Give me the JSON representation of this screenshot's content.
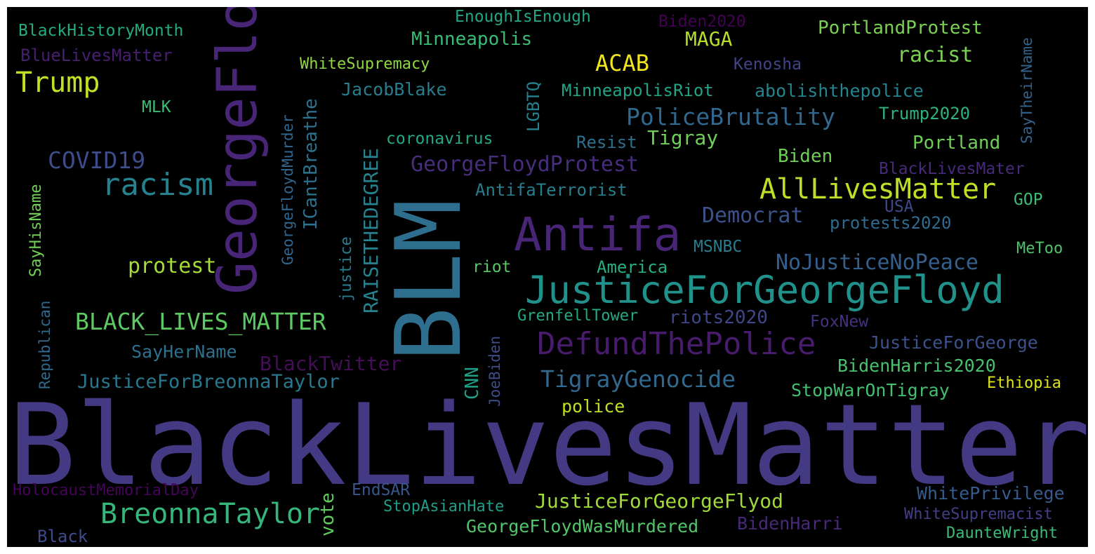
{
  "words": [
    {
      "text": "BlackLivesMatter",
      "color": "#443a83"
    },
    {
      "text": "BLM",
      "color": "#2e6e8e"
    },
    {
      "text": "GeorgeFloyd",
      "color": "#482576"
    },
    {
      "text": "Antifa",
      "color": "#482576"
    },
    {
      "text": "JusticeForGeorgeFloyd",
      "color": "#21918c"
    },
    {
      "text": "DefundThePolice",
      "color": "#481b6d"
    },
    {
      "text": "racism",
      "color": "#26828e"
    },
    {
      "text": "AllLivesMatter",
      "color": "#bddf26"
    },
    {
      "text": "BreonnaTaylor",
      "color": "#35b779"
    },
    {
      "text": "Trump",
      "color": "#c0df25"
    },
    {
      "text": "BLACK_LIVES_MATTER",
      "color": "#5ec962"
    },
    {
      "text": "PoliceBrutality",
      "color": "#31688e"
    },
    {
      "text": "TigrayGenocide",
      "color": "#31688e"
    },
    {
      "text": "GeorgeFloydProtest",
      "color": "#472d7b"
    },
    {
      "text": "NoJusticeNoPeace",
      "color": "#355f8d"
    },
    {
      "text": "COVID19",
      "color": "#3e4c8a"
    },
    {
      "text": "ACAB",
      "color": "#f1e51d"
    },
    {
      "text": "racist",
      "color": "#7ad151"
    },
    {
      "text": "protest",
      "color": "#a5db36"
    },
    {
      "text": "JusticeForBreonnaTaylor",
      "color": "#2a788e"
    },
    {
      "text": "JusticeForGeorgeFlyod",
      "color": "#a0da39"
    },
    {
      "text": "BlackTwitter",
      "color": "#440f57"
    },
    {
      "text": "Democrat",
      "color": "#3b528b"
    },
    {
      "text": "RAISETHEDEGREE",
      "color": "#26828e"
    },
    {
      "text": "PortlandProtest",
      "color": "#7ad151"
    },
    {
      "text": "Minneapolis",
      "color": "#3bbb75"
    },
    {
      "text": "MAGA",
      "color": "#b5de2b"
    },
    {
      "text": "riots2020",
      "color": "#3f4788"
    },
    {
      "text": "JusticeForGeorge",
      "color": "#3b528b"
    },
    {
      "text": "BidenHarris2020",
      "color": "#4ac16d"
    },
    {
      "text": "Tigray",
      "color": "#6ece58"
    },
    {
      "text": "Portland",
      "color": "#6ece58"
    },
    {
      "text": "ICantBreathe",
      "color": "#2c718e"
    },
    {
      "text": "WhitePrivilege",
      "color": "#365c8d"
    },
    {
      "text": "GeorgeFloydWasMurdered",
      "color": "#52c569"
    },
    {
      "text": "BidenHarri",
      "color": "#482878"
    },
    {
      "text": "JacobBlake",
      "color": "#287d8e"
    },
    {
      "text": "MinneapolisRiot",
      "color": "#20a486"
    },
    {
      "text": "abolishthepolice",
      "color": "#25848e"
    },
    {
      "text": "SayHerName",
      "color": "#2c718e"
    },
    {
      "text": "StopWarOnTigray",
      "color": "#44bf70"
    },
    {
      "text": "police",
      "color": "#c2df23"
    },
    {
      "text": "BlackHistoryMonth",
      "color": "#25ab82"
    },
    {
      "text": "BlueLivesMatter",
      "color": "#481f70"
    },
    {
      "text": "Biden",
      "color": "#6ece58"
    },
    {
      "text": "AntifaTerrorist",
      "color": "#277f8e"
    },
    {
      "text": "America",
      "color": "#29af7f"
    },
    {
      "text": "MSNBC",
      "color": "#287c8e"
    },
    {
      "text": "protests2020",
      "color": "#2f6b8e"
    },
    {
      "text": "Trump2020",
      "color": "#2db27d"
    },
    {
      "text": "BlackLivesMater",
      "color": "#472a7a"
    },
    {
      "text": "Resist",
      "color": "#2c728e"
    },
    {
      "text": "coronavirus",
      "color": "#22a884"
    },
    {
      "text": "GrenfellTower",
      "color": "#23a983"
    },
    {
      "text": "EnoughIsEnough",
      "color": "#21a685"
    },
    {
      "text": "WhiteSupremacy",
      "color": "#90d743"
    },
    {
      "text": "Biden2020",
      "color": "#440154"
    },
    {
      "text": "Kenosha",
      "color": "#414487"
    },
    {
      "text": "SayTheirName",
      "color": "#33638d"
    },
    {
      "text": "USA",
      "color": "#3e4989"
    },
    {
      "text": "GOP",
      "color": "#3dbc74"
    },
    {
      "text": "MeToo",
      "color": "#4ec36b"
    },
    {
      "text": "MLK",
      "color": "#3dbc74"
    },
    {
      "text": "riot",
      "color": "#58c765"
    },
    {
      "text": "FoxNew",
      "color": "#46327e"
    },
    {
      "text": "Ethiopia",
      "color": "#dde318"
    },
    {
      "text": "WhiteSupremacist",
      "color": "#433e85"
    },
    {
      "text": "DaunteWright",
      "color": "#3bbb75"
    },
    {
      "text": "HolocaustMemorialDay",
      "color": "#450559"
    },
    {
      "text": "EndSAR",
      "color": "#39568c"
    },
    {
      "text": "StopAsianHate",
      "color": "#1f9e89"
    },
    {
      "text": "Black",
      "color": "#3e4a89"
    },
    {
      "text": "vote",
      "color": "#62cb5f"
    },
    {
      "text": "CNN",
      "color": "#1fa088"
    },
    {
      "text": "JoeBiden",
      "color": "#3d4e8a"
    },
    {
      "text": "justice",
      "color": "#287d8e"
    },
    {
      "text": "GeorgeFloydMurder",
      "color": "#31678e"
    },
    {
      "text": "LGBTQ",
      "color": "#26818e"
    },
    {
      "text": "SayHisName",
      "color": "#73d056"
    },
    {
      "text": "Republican",
      "color": "#306a8e"
    }
  ]
}
